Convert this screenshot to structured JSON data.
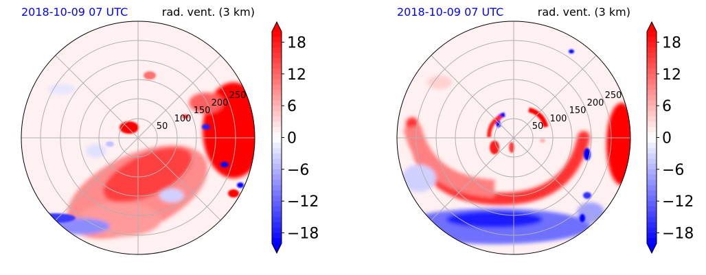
{
  "chart_data": [
    {
      "type": "heatmap",
      "projection": "polar",
      "title_left": "2018-10-09 07 UTC",
      "title_right": "rad. vent. (3 km)",
      "title_left_color": "#0000ff",
      "radial_ticks": [
        "50",
        "100",
        "150",
        "200",
        "250"
      ],
      "radial_range": [
        0,
        300
      ],
      "grid": true,
      "colorbar": {
        "ticks": [
          "18",
          "12",
          "6",
          "0",
          "−6",
          "−12",
          "−18"
        ],
        "range": [
          -20,
          20
        ],
        "colormap": "bwr",
        "extend": "both"
      }
    },
    {
      "type": "heatmap",
      "projection": "polar",
      "title_left": "2018-10-09 07 UTC",
      "title_right": "rad. vent. (3 km)",
      "title_left_color": "#0000ff",
      "radial_ticks": [
        "50",
        "100",
        "150",
        "200",
        "250"
      ],
      "radial_range": [
        0,
        300
      ],
      "grid": true,
      "colorbar": {
        "ticks": [
          "18",
          "12",
          "6",
          "0",
          "−6",
          "−12",
          "−18"
        ],
        "range": [
          -20,
          20
        ],
        "colormap": "bwr",
        "extend": "both"
      }
    }
  ],
  "colors": {
    "positive_max": "#ff0000",
    "negative_max": "#0000ff",
    "neutral": "#ffffff",
    "grid": "#b0b0b0"
  }
}
